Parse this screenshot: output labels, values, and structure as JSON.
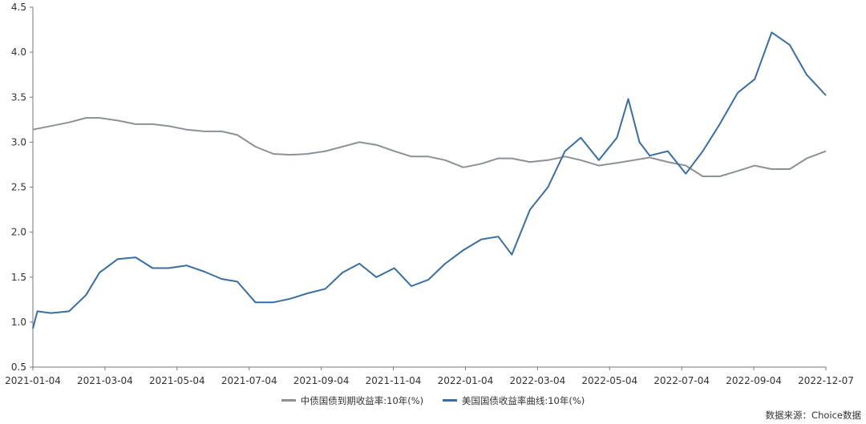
{
  "chart_data": {
    "type": "line",
    "ylim": [
      0.5,
      4.5
    ],
    "yticks": [
      "0.5",
      "1.0",
      "1.5",
      "2.0",
      "2.5",
      "3.0",
      "3.5",
      "4.0",
      "4.5"
    ],
    "xtick_labels": [
      "2021-01-04",
      "2021-03-04",
      "2021-05-04",
      "2021-07-04",
      "2021-09-04",
      "2021-11-04",
      "2022-01-04",
      "2022-03-04",
      "2022-05-04",
      "2022-07-04",
      "2022-09-04",
      "2022-12-07"
    ],
    "grid": false,
    "legend_position": "bottom",
    "series": [
      {
        "name": "中债国债到期收益率:10年(%)",
        "color": "#8c9196",
        "points": [
          [
            "2021-01-04",
            3.14
          ],
          [
            "2021-01-20",
            3.18
          ],
          [
            "2021-02-05",
            3.22
          ],
          [
            "2021-02-20",
            3.27
          ],
          [
            "2021-03-04",
            3.27
          ],
          [
            "2021-03-20",
            3.24
          ],
          [
            "2021-04-05",
            3.2
          ],
          [
            "2021-04-20",
            3.2
          ],
          [
            "2021-05-04",
            3.18
          ],
          [
            "2021-05-20",
            3.14
          ],
          [
            "2021-06-05",
            3.12
          ],
          [
            "2021-06-20",
            3.12
          ],
          [
            "2021-07-04",
            3.08
          ],
          [
            "2021-07-20",
            2.95
          ],
          [
            "2021-08-05",
            2.87
          ],
          [
            "2021-08-20",
            2.86
          ],
          [
            "2021-09-04",
            2.87
          ],
          [
            "2021-09-20",
            2.9
          ],
          [
            "2021-10-05",
            2.95
          ],
          [
            "2021-10-20",
            3.0
          ],
          [
            "2021-11-04",
            2.97
          ],
          [
            "2021-11-20",
            2.9
          ],
          [
            "2021-12-05",
            2.84
          ],
          [
            "2021-12-20",
            2.84
          ],
          [
            "2022-01-04",
            2.8
          ],
          [
            "2022-01-20",
            2.72
          ],
          [
            "2022-02-05",
            2.76
          ],
          [
            "2022-02-20",
            2.82
          ],
          [
            "2022-03-04",
            2.82
          ],
          [
            "2022-03-20",
            2.78
          ],
          [
            "2022-04-05",
            2.8
          ],
          [
            "2022-04-20",
            2.84
          ],
          [
            "2022-05-04",
            2.8
          ],
          [
            "2022-05-20",
            2.74
          ],
          [
            "2022-06-05",
            2.77
          ],
          [
            "2022-06-20",
            2.8
          ],
          [
            "2022-07-04",
            2.83
          ],
          [
            "2022-07-20",
            2.78
          ],
          [
            "2022-08-05",
            2.74
          ],
          [
            "2022-08-20",
            2.62
          ],
          [
            "2022-09-04",
            2.62
          ],
          [
            "2022-09-20",
            2.68
          ],
          [
            "2022-10-05",
            2.74
          ],
          [
            "2022-10-20",
            2.7
          ],
          [
            "2022-11-05",
            2.7
          ],
          [
            "2022-11-20",
            2.82
          ],
          [
            "2022-12-07",
            2.9
          ]
        ]
      },
      {
        "name": "美国国债收益率曲线:10年(%)",
        "color": "#3a6ea0",
        "points": [
          [
            "2021-01-04",
            0.93
          ],
          [
            "2021-01-08",
            1.12
          ],
          [
            "2021-01-20",
            1.1
          ],
          [
            "2021-02-05",
            1.12
          ],
          [
            "2021-02-20",
            1.3
          ],
          [
            "2021-03-04",
            1.55
          ],
          [
            "2021-03-20",
            1.7
          ],
          [
            "2021-04-05",
            1.72
          ],
          [
            "2021-04-20",
            1.6
          ],
          [
            "2021-05-04",
            1.6
          ],
          [
            "2021-05-20",
            1.63
          ],
          [
            "2021-06-05",
            1.56
          ],
          [
            "2021-06-20",
            1.48
          ],
          [
            "2021-07-04",
            1.45
          ],
          [
            "2021-07-20",
            1.22
          ],
          [
            "2021-08-05",
            1.22
          ],
          [
            "2021-08-20",
            1.26
          ],
          [
            "2021-09-04",
            1.32
          ],
          [
            "2021-09-20",
            1.37
          ],
          [
            "2021-10-05",
            1.55
          ],
          [
            "2021-10-20",
            1.65
          ],
          [
            "2021-11-04",
            1.5
          ],
          [
            "2021-11-20",
            1.6
          ],
          [
            "2021-12-05",
            1.4
          ],
          [
            "2021-12-20",
            1.47
          ],
          [
            "2022-01-04",
            1.65
          ],
          [
            "2022-01-20",
            1.8
          ],
          [
            "2022-02-05",
            1.92
          ],
          [
            "2022-02-20",
            1.95
          ],
          [
            "2022-03-04",
            1.75
          ],
          [
            "2022-03-20",
            2.25
          ],
          [
            "2022-04-05",
            2.5
          ],
          [
            "2022-04-20",
            2.9
          ],
          [
            "2022-05-04",
            3.05
          ],
          [
            "2022-05-20",
            2.8
          ],
          [
            "2022-06-05",
            3.05
          ],
          [
            "2022-06-15",
            3.48
          ],
          [
            "2022-06-25",
            3.0
          ],
          [
            "2022-07-04",
            2.85
          ],
          [
            "2022-07-20",
            2.9
          ],
          [
            "2022-08-05",
            2.65
          ],
          [
            "2022-08-20",
            2.9
          ],
          [
            "2022-09-04",
            3.2
          ],
          [
            "2022-09-20",
            3.55
          ],
          [
            "2022-10-05",
            3.7
          ],
          [
            "2022-10-20",
            4.22
          ],
          [
            "2022-11-05",
            4.08
          ],
          [
            "2022-11-20",
            3.75
          ],
          [
            "2022-12-07",
            3.52
          ]
        ]
      }
    ]
  },
  "legend": {
    "item1": "中债国债到期收益率:10年(%)",
    "item2": "美国国债收益率曲线:10年(%)"
  },
  "source": "数据来源：Choice数据"
}
